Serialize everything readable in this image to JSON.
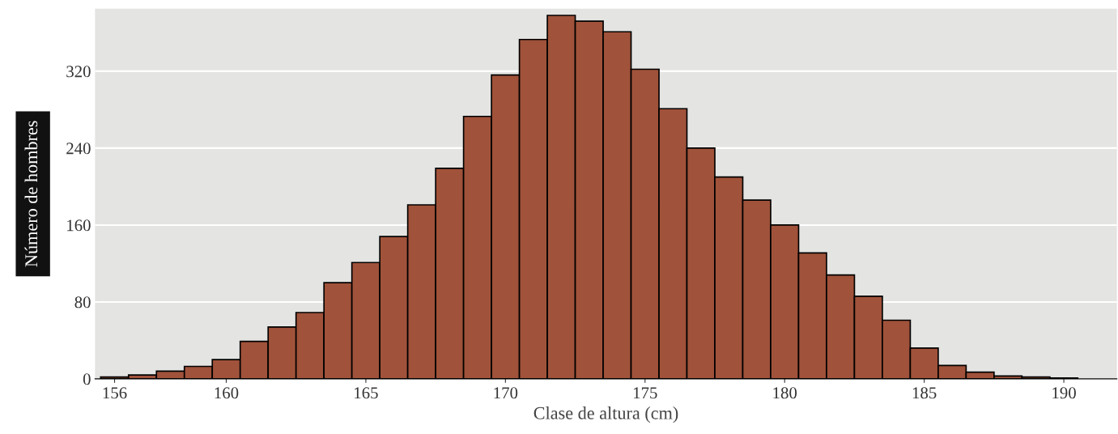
{
  "chart_data": {
    "type": "histogram",
    "xlabel": "Clase de altura (cm)",
    "ylabel": "Número de hombres",
    "bins": [
      155.5,
      156.5,
      157.5,
      158.5,
      159.5,
      160.5,
      161.5,
      162.5,
      163.5,
      164.5,
      165.5,
      166.5,
      167.5,
      168.5,
      169.5,
      170.5,
      171.5,
      172.5,
      173.5,
      174.5,
      175.5,
      176.5,
      177.5,
      178.5,
      179.5,
      180.5,
      181.5,
      182.5,
      183.5,
      184.5,
      185.5,
      186.5,
      187.5,
      188.5,
      189.5,
      190.5
    ],
    "values": [
      2,
      4,
      8,
      13,
      20,
      39,
      54,
      69,
      100,
      121,
      148,
      181,
      219,
      273,
      316,
      353,
      378,
      372,
      361,
      322,
      281,
      240,
      210,
      186,
      160,
      131,
      108,
      86,
      61,
      32,
      14,
      7,
      3,
      2,
      1
    ],
    "color": "#a0523a",
    "xlim": [
      155.3,
      191.9
    ],
    "ylim": [
      0,
      385
    ],
    "xticks": [
      156,
      160,
      165,
      170,
      175,
      180,
      185,
      190
    ],
    "yticks": [
      0,
      80,
      160,
      240,
      320
    ],
    "grid": "y"
  }
}
